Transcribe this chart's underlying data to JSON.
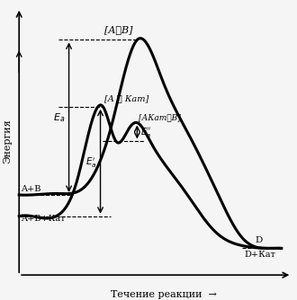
{
  "figsize": [
    3.3,
    3.34
  ],
  "dpi": 100,
  "bg_color": "#f5f5f5",
  "curve_color": "#000000",
  "curve_lw": 2.2,
  "x_label": "Течение реакции  →",
  "y_label": "Энергия",
  "label_AB_transition": "[A⋯B]",
  "label_A_kat": "[A ⋯ Кат]",
  "label_AKat_B": "[АКат⋯B]",
  "label_AB": "A+B",
  "label_ABKat": "A+B+Кат",
  "label_D": "D",
  "label_DKat": "D+Кат",
  "label_Ea": "$E_a$",
  "label_Ea_prime": "$E_a^{\\prime}$",
  "label_Ea_dbl": "$E_a^{\\prime\\prime}$"
}
